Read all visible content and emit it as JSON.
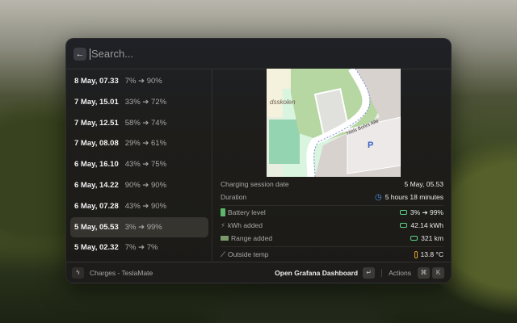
{
  "search": {
    "placeholder": "Search...",
    "back_icon": "arrow-left-icon"
  },
  "charges": [
    {
      "date": "8 May, 07.33",
      "range": "7% ➔ 90%"
    },
    {
      "date": "7 May, 15.01",
      "range": "33% ➔ 72%"
    },
    {
      "date": "7 May, 12.51",
      "range": "58% ➔ 74%"
    },
    {
      "date": "7 May, 08.08",
      "range": "29% ➔ 61%"
    },
    {
      "date": "6 May, 16.10",
      "range": "43% ➔ 75%"
    },
    {
      "date": "6 May, 14.22",
      "range": "90% ➔ 90%"
    },
    {
      "date": "6 May, 07.28",
      "range": "43% ➔ 90%"
    },
    {
      "date": "5 May, 05.53",
      "range": "3% ➔ 99%",
      "selected": true
    },
    {
      "date": "5 May, 02.32",
      "range": "7% ➔ 7%"
    }
  ],
  "map": {
    "labels": {
      "school": "dsskolen",
      "street": "Niels Bohrs Allé",
      "parking": "P"
    }
  },
  "detail": {
    "session_date": {
      "label": "Charging session date",
      "value": "5 May, 05.53"
    },
    "duration": {
      "label": "Duration",
      "value": "5 hours 18 minutes",
      "icon": "clock-icon"
    },
    "battery": {
      "label": "Battery level",
      "value": "3% ➔ 99%",
      "icon": "battery-icon"
    },
    "kwh": {
      "label": "kWh added",
      "value": "42.14 kWh",
      "icon": "plug-icon"
    },
    "range": {
      "label": "Range added",
      "value": "321 km",
      "icon": "road-icon"
    },
    "temp": {
      "label": "Outside temp",
      "value": "13.8 °C",
      "icon": "thermometer-icon"
    }
  },
  "footer": {
    "title": "Charges - TeslaMate",
    "primary_action": "Open Grafana Dashboard",
    "enter_key": "↵",
    "actions": "Actions",
    "cmd_key": "⌘",
    "k_key": "K"
  },
  "colors": {
    "accent_green": "#5fd38a",
    "clock_blue": "#4a8fe8",
    "temp_orange": "#e0a030"
  }
}
